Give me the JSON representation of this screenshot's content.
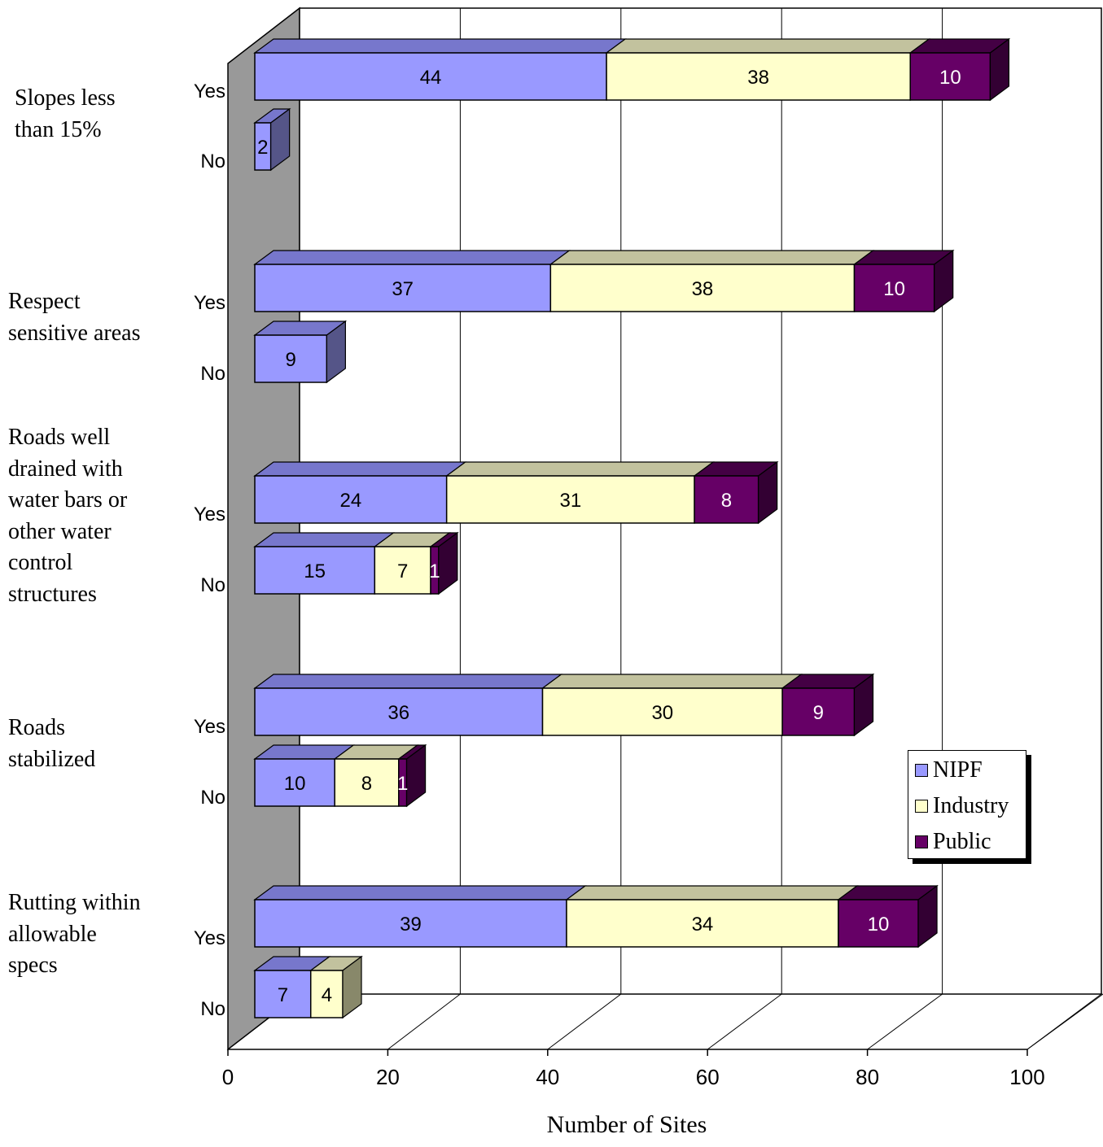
{
  "chart_data": {
    "type": "bar",
    "orientation": "horizontal",
    "stacked": true,
    "three_d": true,
    "title": "",
    "xlabel": "Number of Sites",
    "ylabel": "",
    "xlim": [
      0,
      100
    ],
    "xticks": [
      0,
      20,
      40,
      60,
      80,
      100
    ],
    "grid": true,
    "legend_position": "right",
    "series": [
      {
        "name": "NIPF",
        "color": "#9999ff"
      },
      {
        "name": "Industry",
        "color": "#ffffcc"
      },
      {
        "name": "Public",
        "color": "#660066"
      }
    ],
    "groups": [
      {
        "label": "Slopes less\nthan 15%",
        "bars": [
          {
            "label": "Yes",
            "values": [
              44,
              38,
              10
            ]
          },
          {
            "label": "No",
            "values": [
              2,
              0,
              0
            ]
          }
        ]
      },
      {
        "label": "Respect\nsensitive areas",
        "bars": [
          {
            "label": "Yes",
            "values": [
              37,
              38,
              10
            ]
          },
          {
            "label": "No",
            "values": [
              9,
              0,
              0
            ]
          }
        ]
      },
      {
        "label": "Roads well\ndrained with\nwater bars or\nother water\ncontrol\nstructures",
        "bars": [
          {
            "label": "Yes",
            "values": [
              24,
              31,
              8
            ]
          },
          {
            "label": "No",
            "values": [
              15,
              7,
              1
            ]
          }
        ]
      },
      {
        "label": "Roads\nstabilized",
        "bars": [
          {
            "label": "Yes",
            "values": [
              36,
              30,
              9
            ]
          },
          {
            "label": "No",
            "values": [
              10,
              8,
              1
            ]
          }
        ]
      },
      {
        "label": "Rutting within\nallowable\nspecs",
        "bars": [
          {
            "label": "Yes",
            "values": [
              39,
              34,
              10
            ]
          },
          {
            "label": "No",
            "values": [
              7,
              4,
              0
            ]
          }
        ]
      }
    ]
  }
}
